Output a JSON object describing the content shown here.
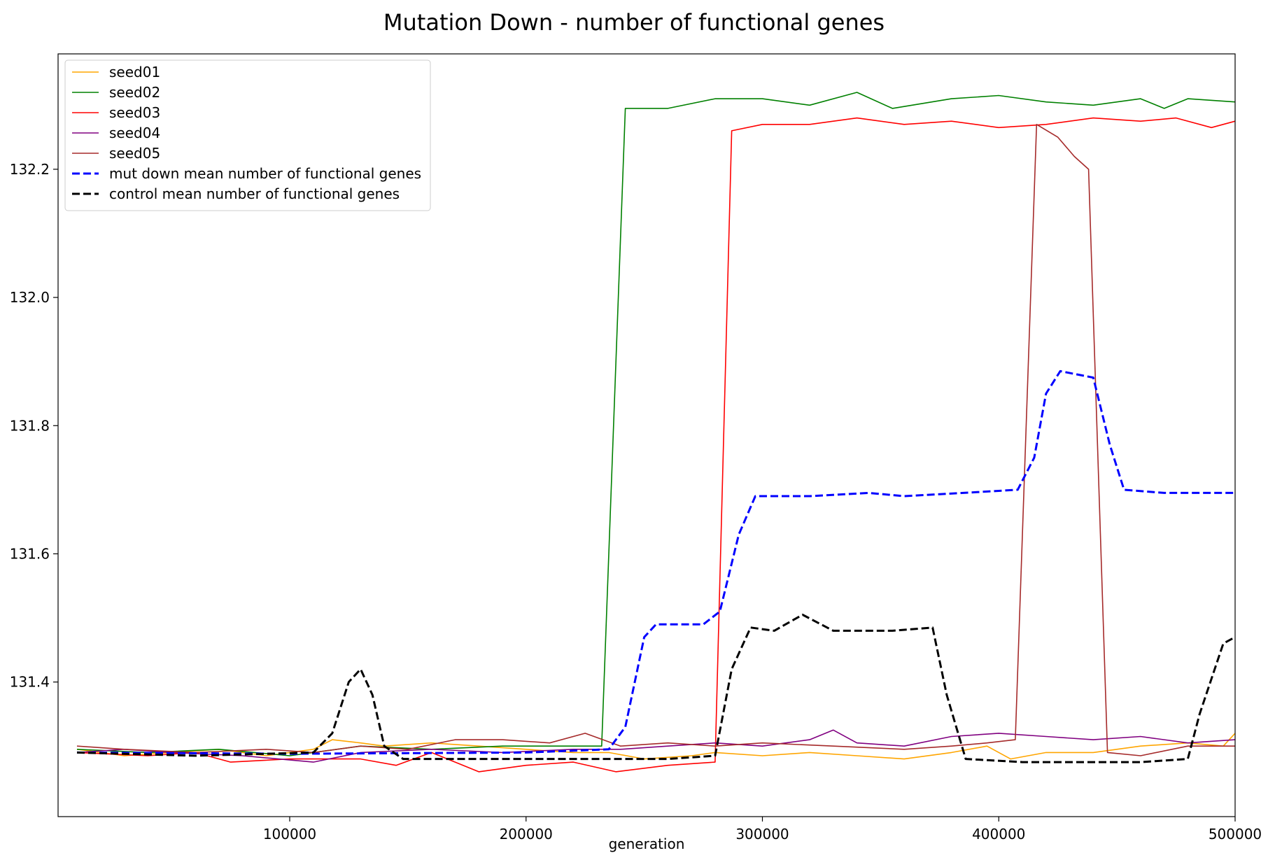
{
  "chart_data": {
    "type": "line",
    "title": "Mutation Down - number of functional genes",
    "xlabel": "generation",
    "ylabel": "",
    "xlim": [
      2000,
      500000
    ],
    "ylim": [
      131.19,
      132.38
    ],
    "xticks": [
      100000,
      200000,
      300000,
      400000,
      500000
    ],
    "xtick_labels": [
      "100000",
      "200000",
      "300000",
      "400000",
      "500000"
    ],
    "yticks": [
      131.4,
      131.6,
      131.8,
      132.0,
      132.2
    ],
    "ytick_labels": [
      "131.4",
      "131.6",
      "131.8",
      "132.0",
      "132.2"
    ],
    "grid": false,
    "legend_position": "upper-left",
    "series": [
      {
        "name": "seed01",
        "color": "#ffa500",
        "style": "solid",
        "points": [
          [
            10000,
            131.295
          ],
          [
            30000,
            131.285
          ],
          [
            50000,
            131.29
          ],
          [
            70000,
            131.295
          ],
          [
            90000,
            131.285
          ],
          [
            110000,
            131.295
          ],
          [
            118000,
            131.31
          ],
          [
            130000,
            131.305
          ],
          [
            140000,
            131.3
          ],
          [
            160000,
            131.305
          ],
          [
            180000,
            131.3
          ],
          [
            200000,
            131.295
          ],
          [
            220000,
            131.29
          ],
          [
            235000,
            131.29
          ],
          [
            250000,
            131.28
          ],
          [
            270000,
            131.285
          ],
          [
            280000,
            131.29
          ],
          [
            300000,
            131.285
          ],
          [
            320000,
            131.29
          ],
          [
            340000,
            131.285
          ],
          [
            360000,
            131.28
          ],
          [
            380000,
            131.29
          ],
          [
            395000,
            131.3
          ],
          [
            405000,
            131.28
          ],
          [
            420000,
            131.29
          ],
          [
            440000,
            131.29
          ],
          [
            460000,
            131.3
          ],
          [
            480000,
            131.305
          ],
          [
            495000,
            131.3
          ],
          [
            500000,
            131.32
          ]
        ]
      },
      {
        "name": "seed02",
        "color": "#008000",
        "style": "solid",
        "points": [
          [
            10000,
            131.295
          ],
          [
            40000,
            131.29
          ],
          [
            70000,
            131.295
          ],
          [
            100000,
            131.285
          ],
          [
            130000,
            131.3
          ],
          [
            160000,
            131.295
          ],
          [
            190000,
            131.3
          ],
          [
            220000,
            131.3
          ],
          [
            232000,
            131.3
          ],
          [
            242000,
            132.295
          ],
          [
            260000,
            132.295
          ],
          [
            280000,
            132.31
          ],
          [
            300000,
            132.31
          ],
          [
            320000,
            132.3
          ],
          [
            340000,
            132.32
          ],
          [
            355000,
            132.295
          ],
          [
            380000,
            132.31
          ],
          [
            400000,
            132.315
          ],
          [
            420000,
            132.305
          ],
          [
            440000,
            132.3
          ],
          [
            460000,
            132.31
          ],
          [
            470000,
            132.295
          ],
          [
            480000,
            132.31
          ],
          [
            500000,
            132.305
          ]
        ]
      },
      {
        "name": "seed03",
        "color": "#ff0000",
        "style": "solid",
        "points": [
          [
            10000,
            131.29
          ],
          [
            40000,
            131.285
          ],
          [
            60000,
            131.29
          ],
          [
            75000,
            131.275
          ],
          [
            100000,
            131.28
          ],
          [
            130000,
            131.28
          ],
          [
            145000,
            131.27
          ],
          [
            160000,
            131.29
          ],
          [
            180000,
            131.26
          ],
          [
            200000,
            131.27
          ],
          [
            220000,
            131.275
          ],
          [
            238000,
            131.26
          ],
          [
            260000,
            131.27
          ],
          [
            280000,
            131.275
          ],
          [
            287000,
            132.26
          ],
          [
            300000,
            132.27
          ],
          [
            320000,
            132.27
          ],
          [
            340000,
            132.28
          ],
          [
            360000,
            132.27
          ],
          [
            380000,
            132.275
          ],
          [
            400000,
            132.265
          ],
          [
            420000,
            132.27
          ],
          [
            440000,
            132.28
          ],
          [
            460000,
            132.275
          ],
          [
            475000,
            132.28
          ],
          [
            490000,
            132.265
          ],
          [
            500000,
            132.275
          ]
        ]
      },
      {
        "name": "seed04",
        "color": "#800080",
        "style": "solid",
        "points": [
          [
            10000,
            131.29
          ],
          [
            30000,
            131.295
          ],
          [
            50000,
            131.29
          ],
          [
            80000,
            131.285
          ],
          [
            110000,
            131.275
          ],
          [
            130000,
            131.29
          ],
          [
            160000,
            131.295
          ],
          [
            190000,
            131.29
          ],
          [
            220000,
            131.295
          ],
          [
            240000,
            131.295
          ],
          [
            260000,
            131.3
          ],
          [
            280000,
            131.305
          ],
          [
            300000,
            131.3
          ],
          [
            320000,
            131.31
          ],
          [
            330000,
            131.325
          ],
          [
            340000,
            131.305
          ],
          [
            360000,
            131.3
          ],
          [
            380000,
            131.315
          ],
          [
            400000,
            131.32
          ],
          [
            420000,
            131.315
          ],
          [
            440000,
            131.31
          ],
          [
            460000,
            131.315
          ],
          [
            480000,
            131.305
          ],
          [
            500000,
            131.31
          ]
        ]
      },
      {
        "name": "seed05",
        "color": "#a52a2a",
        "style": "solid",
        "points": [
          [
            10000,
            131.3
          ],
          [
            30000,
            131.295
          ],
          [
            60000,
            131.29
          ],
          [
            90000,
            131.295
          ],
          [
            110000,
            131.29
          ],
          [
            130000,
            131.3
          ],
          [
            150000,
            131.295
          ],
          [
            170000,
            131.31
          ],
          [
            190000,
            131.31
          ],
          [
            210000,
            131.305
          ],
          [
            225000,
            131.32
          ],
          [
            240000,
            131.3
          ],
          [
            260000,
            131.305
          ],
          [
            280000,
            131.3
          ],
          [
            300000,
            131.305
          ],
          [
            330000,
            131.3
          ],
          [
            360000,
            131.295
          ],
          [
            380000,
            131.3
          ],
          [
            395000,
            131.305
          ],
          [
            407000,
            131.31
          ],
          [
            416000,
            132.27
          ],
          [
            425000,
            132.25
          ],
          [
            432000,
            132.22
          ],
          [
            438000,
            132.2
          ],
          [
            446000,
            131.29
          ],
          [
            460000,
            131.285
          ],
          [
            480000,
            131.3
          ],
          [
            500000,
            131.3
          ]
        ]
      },
      {
        "name": "mut down mean number of functional genes",
        "color": "#0000ff",
        "style": "dashed",
        "points": [
          [
            10000,
            131.29
          ],
          [
            100000,
            131.288
          ],
          [
            200000,
            131.29
          ],
          [
            235000,
            131.295
          ],
          [
            242000,
            131.33
          ],
          [
            250000,
            131.47
          ],
          [
            255000,
            131.49
          ],
          [
            275000,
            131.49
          ],
          [
            282000,
            131.51
          ],
          [
            290000,
            131.63
          ],
          [
            297000,
            131.69
          ],
          [
            320000,
            131.69
          ],
          [
            345000,
            131.695
          ],
          [
            360000,
            131.69
          ],
          [
            385000,
            131.695
          ],
          [
            408000,
            131.7
          ],
          [
            415000,
            131.75
          ],
          [
            420000,
            131.85
          ],
          [
            426000,
            131.885
          ],
          [
            440000,
            131.875
          ],
          [
            447000,
            131.77
          ],
          [
            453000,
            131.7
          ],
          [
            470000,
            131.695
          ],
          [
            500000,
            131.695
          ]
        ]
      },
      {
        "name": "control mean number of functional genes",
        "color": "#000000",
        "style": "dashed",
        "points": [
          [
            10000,
            131.29
          ],
          [
            60000,
            131.285
          ],
          [
            110000,
            131.29
          ],
          [
            118000,
            131.32
          ],
          [
            125000,
            131.4
          ],
          [
            130000,
            131.42
          ],
          [
            135000,
            131.38
          ],
          [
            140000,
            131.3
          ],
          [
            148000,
            131.28
          ],
          [
            200000,
            131.28
          ],
          [
            260000,
            131.28
          ],
          [
            280000,
            131.285
          ],
          [
            287000,
            131.42
          ],
          [
            295000,
            131.485
          ],
          [
            305000,
            131.48
          ],
          [
            317000,
            131.505
          ],
          [
            330000,
            131.48
          ],
          [
            355000,
            131.48
          ],
          [
            372000,
            131.485
          ],
          [
            378000,
            131.38
          ],
          [
            386000,
            131.28
          ],
          [
            410000,
            131.275
          ],
          [
            460000,
            131.275
          ],
          [
            480000,
            131.28
          ],
          [
            485000,
            131.35
          ],
          [
            495000,
            131.46
          ],
          [
            500000,
            131.47
          ]
        ]
      }
    ]
  }
}
